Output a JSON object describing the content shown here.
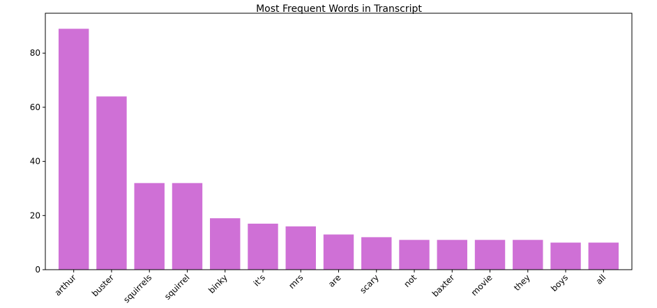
{
  "chart_data": {
    "type": "bar",
    "title": "Most Frequent Words in Transcript",
    "categories": [
      "arthur",
      "buster",
      "squirrels",
      "squirrel",
      "binky",
      "it's",
      "mrs",
      "are",
      "scary",
      "not",
      "baxter",
      "movie",
      "they",
      "boys",
      "all"
    ],
    "values": [
      89,
      64,
      32,
      32,
      19,
      17,
      16,
      13,
      12,
      11,
      11,
      11,
      11,
      10,
      10
    ],
    "color": "#cf70d6",
    "ylim": [
      0,
      93.45
    ],
    "yticks": [
      0,
      20,
      40,
      60,
      80
    ],
    "grid": false
  }
}
